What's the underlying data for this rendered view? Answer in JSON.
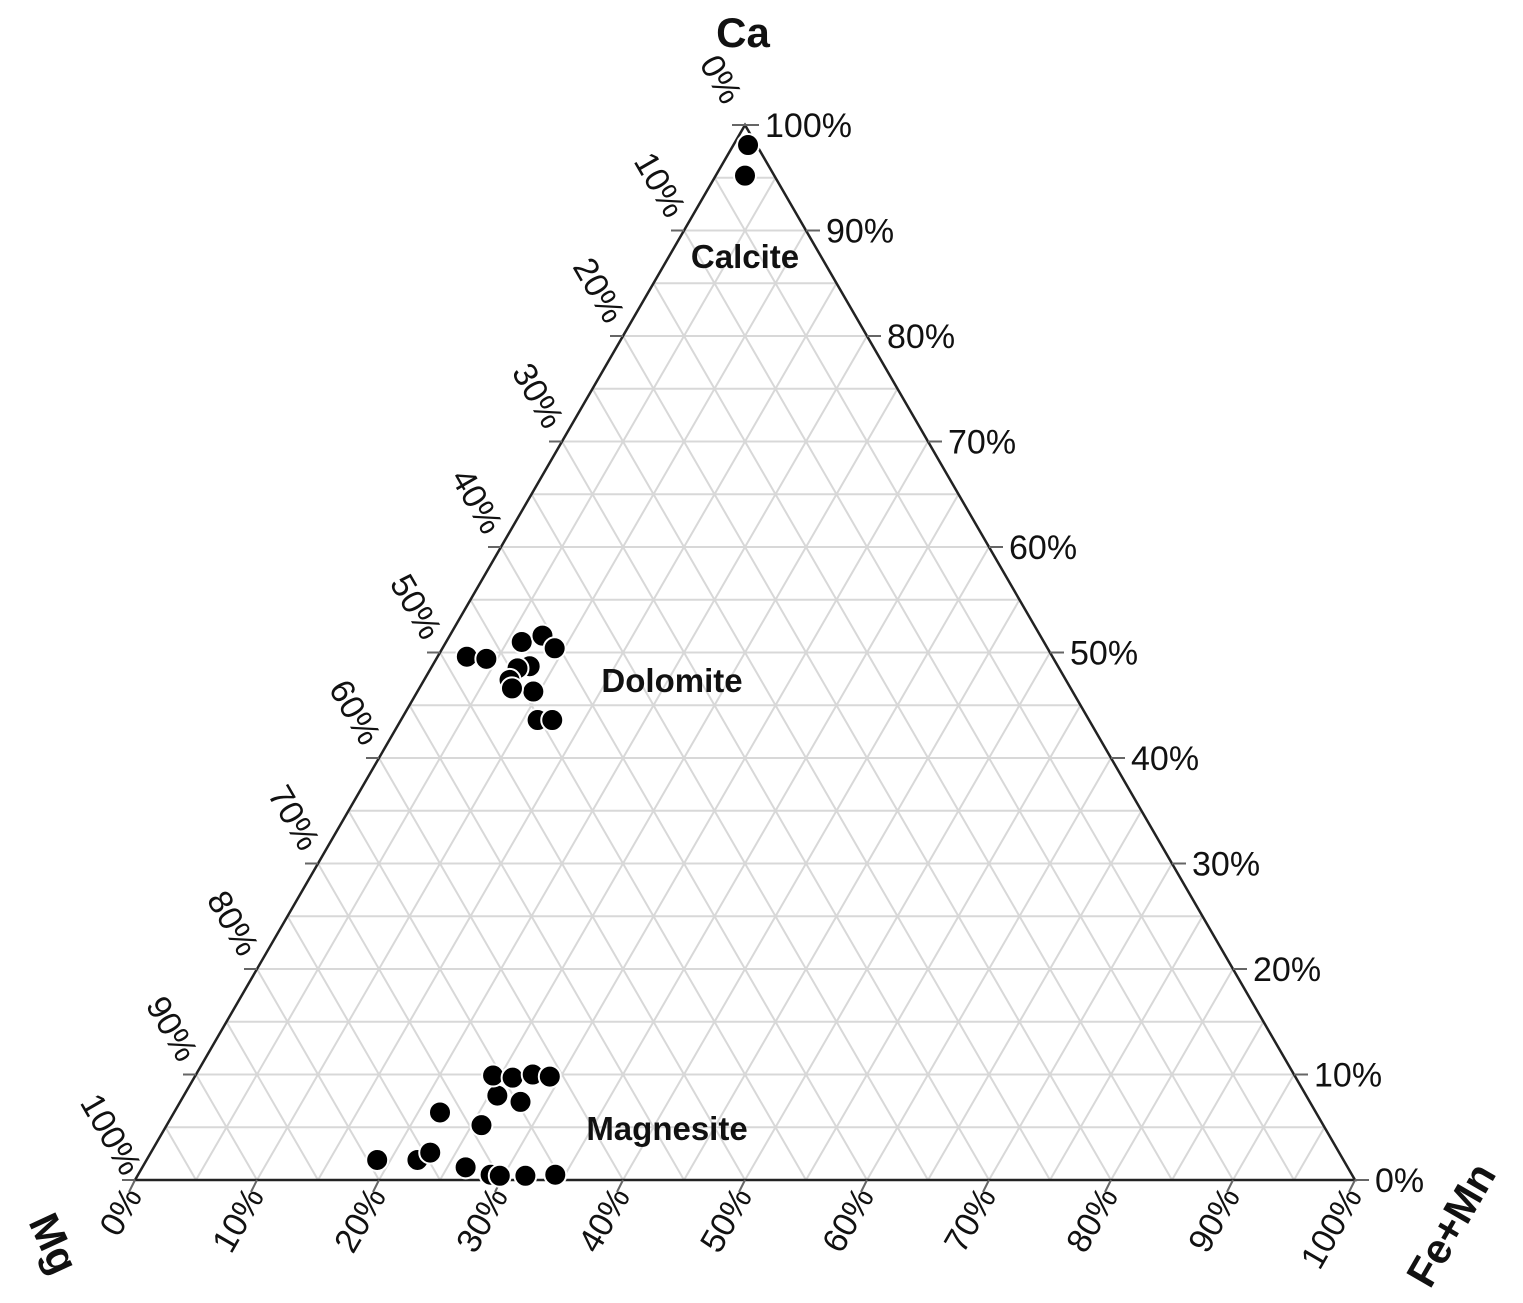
{
  "chart_data": {
    "type": "ternary-scatter",
    "vertices": {
      "top": "Ca",
      "left": "Mg",
      "right": "Fe+Mn"
    },
    "axes": {
      "bottom": {
        "component": "Fe+Mn",
        "ticks": [
          "0%",
          "10%",
          "20%",
          "30%",
          "40%",
          "50%",
          "60%",
          "70%",
          "80%",
          "90%",
          "100%"
        ]
      },
      "left": {
        "component": "Mg",
        "ticks": [
          "0%",
          "10%",
          "20%",
          "30%",
          "40%",
          "50%",
          "60%",
          "70%",
          "80%",
          "90%",
          "100%"
        ]
      },
      "right": {
        "component": "Ca",
        "ticks": [
          "0%",
          "10%",
          "20%",
          "30%",
          "40%",
          "50%",
          "60%",
          "70%",
          "80%",
          "90%",
          "100%"
        ]
      }
    },
    "grid": true,
    "grid_step_percent": 5,
    "marker_color": "#000000",
    "regions": [
      {
        "label": "Calcite",
        "points": [
          [
            98.1,
            0.7,
            1.2
          ],
          [
            95.2,
            2.4,
            2.4
          ]
        ]
      },
      {
        "label": "Dolomite",
        "points": [
          [
            49.6,
            48.0,
            2.4
          ],
          [
            49.4,
            46.5,
            4.1
          ],
          [
            51.0,
            42.8,
            6.2
          ],
          [
            51.6,
            40.8,
            7.6
          ],
          [
            50.4,
            40.4,
            9.2
          ],
          [
            48.7,
            43.3,
            8.0
          ],
          [
            48.5,
            44.4,
            7.1
          ],
          [
            47.4,
            45.6,
            7.0
          ],
          [
            46.3,
            44.2,
            9.5
          ],
          [
            43.6,
            45.2,
            11.2
          ],
          [
            43.6,
            44.0,
            12.4
          ],
          [
            46.6,
            45.8,
            7.6
          ]
        ]
      },
      {
        "label": "Magnesite",
        "points": [
          [
            1.9,
            79.2,
            18.9
          ],
          [
            1.9,
            75.9,
            22.2
          ],
          [
            2.6,
            74.5,
            22.9
          ],
          [
            6.4,
            71.8,
            21.8
          ],
          [
            5.2,
            69.0,
            25.8
          ],
          [
            8.0,
            66.3,
            25.7
          ],
          [
            9.9,
            65.7,
            24.4
          ],
          [
            9.7,
            64.2,
            26.1
          ],
          [
            10.0,
            62.4,
            27.6
          ],
          [
            9.8,
            61.1,
            29.1
          ],
          [
            7.4,
            64.7,
            27.9
          ],
          [
            1.2,
            72.3,
            26.5
          ],
          [
            0.5,
            70.6,
            28.9
          ],
          [
            0.4,
            69.9,
            29.7
          ],
          [
            0.4,
            67.8,
            31.8
          ],
          [
            0.5,
            65.3,
            34.2
          ]
        ]
      }
    ],
    "point_order": [
      "Ca",
      "Mg",
      "Fe+Mn"
    ]
  }
}
